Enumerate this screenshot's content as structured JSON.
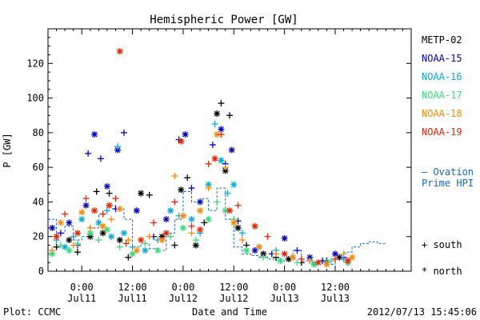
{
  "chart_data": {
    "type": "scatter",
    "title": "Hemispheric Power [GW]",
    "ylabel": "P [GW]",
    "xlabel": "Date and Time",
    "ylim": [
      0,
      140
    ],
    "xlim_hours": [
      -8,
      78
    ],
    "yticks": [
      0,
      20,
      40,
      60,
      80,
      100,
      120
    ],
    "xticks": [
      {
        "hour": 0,
        "time": "0:00",
        "date": "Jul11"
      },
      {
        "hour": 12,
        "time": "12:00",
        "date": "Jul11"
      },
      {
        "hour": 24,
        "time": "0:00",
        "date": "Jul12"
      },
      {
        "hour": 36,
        "time": "12:00",
        "date": "Jul12"
      },
      {
        "hour": 48,
        "time": "0:00",
        "date": "Jul13"
      },
      {
        "hour": 60,
        "time": "12:00",
        "date": "Jul13"
      }
    ],
    "series": [
      {
        "name": "METP-02",
        "color": "#000000",
        "points": [
          [
            -6,
            14
          ],
          [
            -3,
            18
          ],
          [
            -1,
            11
          ],
          [
            2,
            20
          ],
          [
            3.5,
            46
          ],
          [
            5,
            22
          ],
          [
            6.5,
            45
          ],
          [
            9,
            18
          ],
          [
            11,
            8
          ],
          [
            14,
            45
          ],
          [
            16,
            44
          ],
          [
            19,
            20
          ],
          [
            22,
            15
          ],
          [
            23.5,
            47
          ],
          [
            25,
            54
          ],
          [
            27,
            15
          ],
          [
            29,
            28
          ],
          [
            32,
            91
          ],
          [
            33,
            97
          ],
          [
            34,
            58
          ],
          [
            35,
            90
          ],
          [
            37,
            25
          ],
          [
            39,
            15
          ],
          [
            43,
            10
          ],
          [
            46,
            8
          ],
          [
            49,
            7
          ],
          [
            52,
            5
          ],
          [
            55,
            4
          ],
          [
            58,
            6
          ],
          [
            61,
            8
          ],
          [
            63,
            5
          ]
        ]
      },
      {
        "name": "NOAA-15",
        "color": "#0000cc",
        "points": [
          [
            -7,
            25
          ],
          [
            -5,
            22
          ],
          [
            -3,
            28
          ],
          [
            -1,
            15
          ],
          [
            1,
            38
          ],
          [
            1.5,
            68
          ],
          [
            3,
            79
          ],
          [
            4.5,
            65
          ],
          [
            6,
            49
          ],
          [
            8,
            36
          ],
          [
            8.5,
            70
          ],
          [
            10,
            80
          ],
          [
            13,
            35
          ],
          [
            17,
            20
          ],
          [
            20,
            30
          ],
          [
            23,
            76
          ],
          [
            24.5,
            79
          ],
          [
            26,
            48
          ],
          [
            28,
            40
          ],
          [
            31,
            73
          ],
          [
            33,
            82
          ],
          [
            34,
            62
          ],
          [
            35.5,
            70
          ],
          [
            37,
            29
          ],
          [
            41,
            12
          ],
          [
            45,
            10
          ],
          [
            48,
            19
          ],
          [
            51,
            12
          ],
          [
            54,
            8
          ],
          [
            57,
            6
          ],
          [
            60,
            10
          ],
          [
            62,
            8
          ]
        ]
      },
      {
        "name": "NOAA-16",
        "color": "#00aadd",
        "points": [
          [
            -6,
            18
          ],
          [
            -4,
            14
          ],
          [
            -2,
            20
          ],
          [
            0,
            30
          ],
          [
            2,
            25
          ],
          [
            4,
            28
          ],
          [
            6,
            35
          ],
          [
            7,
            20
          ],
          [
            8.5,
            72
          ],
          [
            10,
            22
          ],
          [
            12,
            14
          ],
          [
            15,
            12
          ],
          [
            18,
            18
          ],
          [
            21,
            35
          ],
          [
            23,
            32
          ],
          [
            26,
            30
          ],
          [
            28,
            22
          ],
          [
            30,
            50
          ],
          [
            31.5,
            85
          ],
          [
            33,
            64
          ],
          [
            34.5,
            45
          ],
          [
            36,
            50
          ],
          [
            38,
            22
          ],
          [
            42,
            14
          ],
          [
            46,
            12
          ],
          [
            50,
            8
          ],
          [
            54,
            6
          ],
          [
            58,
            5
          ],
          [
            62,
            7
          ]
        ]
      },
      {
        "name": "NOAA-17",
        "color": "#33dd77",
        "points": [
          [
            -7,
            10
          ],
          [
            -5,
            15
          ],
          [
            -3,
            12
          ],
          [
            -1,
            16
          ],
          [
            2,
            22
          ],
          [
            4,
            18
          ],
          [
            6,
            24
          ],
          [
            9,
            14
          ],
          [
            12,
            10
          ],
          [
            15,
            16
          ],
          [
            18,
            12
          ],
          [
            21,
            20
          ],
          [
            24,
            25
          ],
          [
            27,
            18
          ],
          [
            30,
            30
          ],
          [
            32,
            40
          ],
          [
            34,
            35
          ],
          [
            36,
            30
          ],
          [
            39,
            12
          ],
          [
            43,
            8
          ],
          [
            47,
            6
          ],
          [
            51,
            5
          ],
          [
            55,
            4
          ],
          [
            59,
            6
          ],
          [
            63,
            5
          ]
        ]
      },
      {
        "name": "NOAA-18",
        "color": "#ff8800",
        "points": [
          [
            -7,
            12
          ],
          [
            -5,
            28
          ],
          [
            -2,
            15
          ],
          [
            0,
            34
          ],
          [
            2,
            25
          ],
          [
            5,
            26
          ],
          [
            7,
            30
          ],
          [
            9,
            36
          ],
          [
            11,
            18
          ],
          [
            13,
            12
          ],
          [
            16,
            20
          ],
          [
            19,
            18
          ],
          [
            22,
            55
          ],
          [
            24,
            32
          ],
          [
            26,
            22
          ],
          [
            28,
            35
          ],
          [
            30,
            48
          ],
          [
            32,
            79
          ],
          [
            34,
            60
          ],
          [
            36,
            28
          ],
          [
            38,
            18
          ],
          [
            42,
            14
          ],
          [
            46,
            10
          ],
          [
            50,
            8
          ],
          [
            54,
            6
          ],
          [
            58,
            4
          ],
          [
            62,
            10
          ],
          [
            64,
            8
          ]
        ]
      },
      {
        "name": "NOAA-19",
        "color": "#ee2200",
        "points": [
          [
            -6,
            20
          ],
          [
            -4,
            33
          ],
          [
            -1,
            22
          ],
          [
            1,
            42
          ],
          [
            3,
            35
          ],
          [
            5,
            33
          ],
          [
            6.5,
            38
          ],
          [
            8,
            42
          ],
          [
            9,
            127
          ],
          [
            10.5,
            16
          ],
          [
            14,
            18
          ],
          [
            17,
            28
          ],
          [
            20,
            22
          ],
          [
            22,
            40
          ],
          [
            23.5,
            75
          ],
          [
            26,
            26
          ],
          [
            28,
            24
          ],
          [
            30,
            62
          ],
          [
            31.5,
            65
          ],
          [
            33,
            79
          ],
          [
            35,
            35
          ],
          [
            37,
            38
          ],
          [
            41,
            26
          ],
          [
            44,
            20
          ],
          [
            48,
            10
          ],
          [
            52,
            7
          ],
          [
            56,
            5
          ],
          [
            60,
            7
          ],
          [
            63,
            6
          ]
        ]
      }
    ],
    "ovation": {
      "name": "Ovation Prime HPI",
      "color": "#1166cc",
      "points": [
        [
          -8,
          30
        ],
        [
          -6,
          22
        ],
        [
          -4,
          26
        ],
        [
          -2,
          18
        ],
        [
          0,
          20
        ],
        [
          2,
          25
        ],
        [
          4,
          33
        ],
        [
          6,
          38
        ],
        [
          8,
          36
        ],
        [
          10,
          30
        ],
        [
          12,
          14
        ],
        [
          14,
          16
        ],
        [
          16,
          13
        ],
        [
          18,
          12
        ],
        [
          20,
          22
        ],
        [
          22,
          30
        ],
        [
          24,
          46
        ],
        [
          26,
          40
        ],
        [
          28,
          42
        ],
        [
          30,
          35
        ],
        [
          32,
          48
        ],
        [
          34,
          30
        ],
        [
          36,
          14
        ],
        [
          38,
          10
        ],
        [
          40,
          9
        ],
        [
          42,
          8
        ],
        [
          44,
          7
        ],
        [
          46,
          6
        ],
        [
          48,
          7
        ],
        [
          50,
          12
        ],
        [
          52,
          6
        ],
        [
          54,
          5
        ],
        [
          56,
          6
        ],
        [
          58,
          4
        ],
        [
          60,
          7
        ],
        [
          62,
          11
        ],
        [
          64,
          14
        ],
        [
          66,
          16
        ],
        [
          68,
          17
        ],
        [
          70,
          16
        ]
      ]
    },
    "legend": {
      "series_names": [
        "METP-02",
        "NOAA-15",
        "NOAA-16",
        "NOAA-17",
        "NOAA-18",
        "NOAA-19"
      ],
      "ovation_line1": "– Ovation",
      "ovation_line2": "Prime HPI",
      "south_label": "+ south",
      "north_label": "* north"
    },
    "footer": {
      "plot_label": "Plot: CCMC",
      "timestamp": "2012/07/13 15:45:06"
    }
  }
}
